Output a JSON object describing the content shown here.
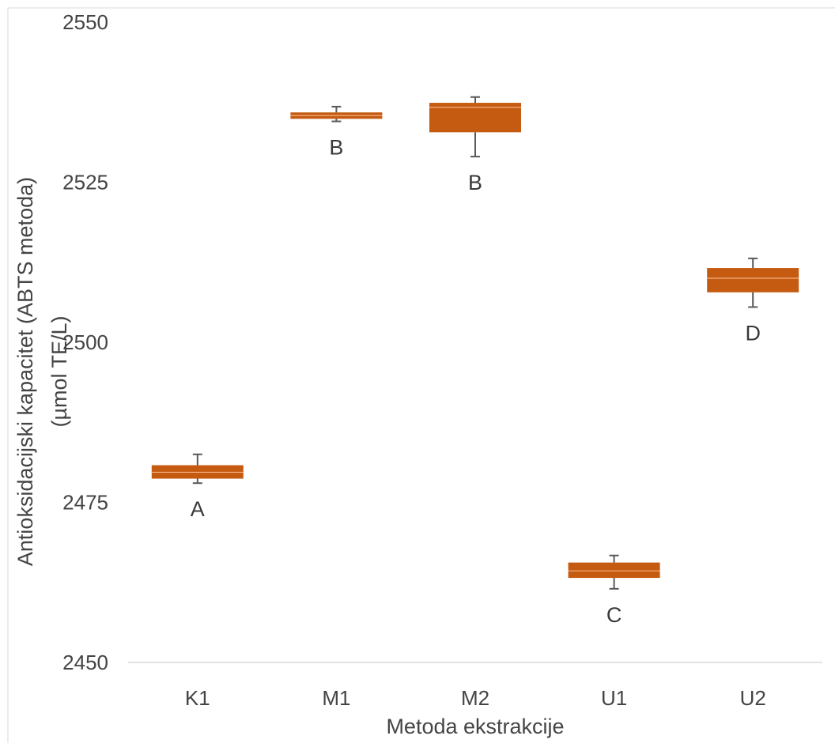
{
  "chart_data": {
    "type": "box",
    "xlabel": "Metoda ekstrakcije",
    "ylabel_line1": "Antioksidacijski kapacitet (ABTS metoda)",
    "ylabel_line2": "(µmol TE/L)",
    "ylim": [
      2450,
      2550
    ],
    "yticks": [
      "2450",
      "2475",
      "2500",
      "2525",
      "2550"
    ],
    "box_color": "#c55a11",
    "whisker_color": "#595959",
    "categories": [
      "K1",
      "M1",
      "M2",
      "U1",
      "U2"
    ],
    "boxes": [
      {
        "category": "K1",
        "min": 2478.0,
        "q1": 2478.7,
        "median": 2479.7,
        "q3": 2480.8,
        "max": 2482.5,
        "group": "A"
      },
      {
        "category": "M1",
        "min": 2534.5,
        "q1": 2534.9,
        "median": 2535.4,
        "q3": 2535.9,
        "max": 2536.8,
        "group": "B"
      },
      {
        "category": "M2",
        "min": 2529.0,
        "q1": 2532.8,
        "median": 2536.7,
        "q3": 2537.4,
        "max": 2538.3,
        "group": "B"
      },
      {
        "category": "U1",
        "min": 2461.5,
        "q1": 2463.2,
        "median": 2464.3,
        "q3": 2465.6,
        "max": 2466.7,
        "group": "C"
      },
      {
        "category": "U2",
        "min": 2505.5,
        "q1": 2507.8,
        "median": 2510.0,
        "q3": 2511.6,
        "max": 2513.1,
        "group": "D"
      }
    ]
  }
}
